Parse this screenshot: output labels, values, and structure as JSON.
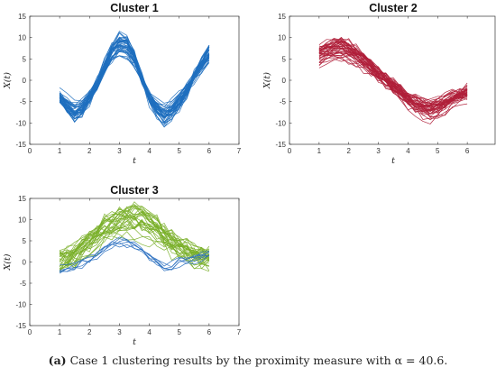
{
  "chart_data": [
    {
      "type": "line",
      "title": "Cluster 1",
      "xlabel": "t",
      "ylabel": "X(t)",
      "xlim": [
        0,
        7
      ],
      "ylim": [
        -15,
        15
      ],
      "xticks": [
        0,
        1,
        2,
        3,
        4,
        5,
        6,
        7
      ],
      "yticks": [
        -15,
        -10,
        -5,
        0,
        5,
        10,
        15
      ],
      "x": [
        1,
        1.25,
        1.5,
        1.75,
        2,
        2.25,
        2.5,
        2.75,
        3,
        3.25,
        3.5,
        3.75,
        4,
        4.25,
        4.5,
        4.75,
        5,
        5.25,
        5.5,
        5.75,
        6
      ],
      "series": [
        {
          "color": "#1f6fbf",
          "count": 40,
          "center": [
            -4,
            -6,
            -7.5,
            -6.5,
            -4,
            -1,
            3,
            6.5,
            8.5,
            8,
            5,
            0.5,
            -4,
            -6.5,
            -8,
            -7,
            -5,
            -2.5,
            1,
            3.5,
            6
          ],
          "spread": 2.2
        }
      ]
    },
    {
      "type": "line",
      "title": "Cluster 2",
      "xlabel": "t",
      "ylabel": "X(t)",
      "xlim": [
        0,
        7
      ],
      "ylim": [
        -15,
        15
      ],
      "xticks": [
        0,
        1,
        2,
        3,
        4,
        5,
        6,
        7
      ],
      "yticks": [
        -15,
        -10,
        -5,
        0,
        5,
        10,
        15
      ],
      "x": [
        1,
        1.25,
        1.5,
        1.75,
        2,
        2.25,
        2.5,
        2.75,
        3,
        3.25,
        3.5,
        3.75,
        4,
        4.25,
        4.5,
        4.75,
        5,
        5.25,
        5.5,
        5.75,
        6
      ],
      "series": [
        {
          "color": "#b0203a",
          "count": 40,
          "center": [
            6,
            7,
            7.5,
            7.5,
            7,
            6,
            4.5,
            3,
            1.5,
            0,
            -1.5,
            -3,
            -4.5,
            -5.5,
            -6.5,
            -7,
            -6.5,
            -5.5,
            -4.5,
            -3.5,
            -3
          ],
          "spread": 2.2
        }
      ]
    },
    {
      "type": "line",
      "title": "Cluster 3",
      "xlabel": "t",
      "ylabel": "X(t)",
      "xlim": [
        0,
        7
      ],
      "ylim": [
        -15,
        15
      ],
      "xticks": [
        0,
        1,
        2,
        3,
        4,
        5,
        6,
        7
      ],
      "yticks": [
        -15,
        -10,
        -5,
        0,
        5,
        10,
        15
      ],
      "x": [
        1,
        1.25,
        1.5,
        1.75,
        2,
        2.25,
        2.5,
        2.75,
        3,
        3.25,
        3.5,
        3.75,
        4,
        4.25,
        4.5,
        4.75,
        5,
        5.25,
        5.5,
        5.75,
        6
      ],
      "series": [
        {
          "color": "#7ab02a",
          "count": 30,
          "center": [
            0,
            0.5,
            1.5,
            3,
            4.5,
            6,
            7.5,
            8.5,
            9.5,
            10,
            10,
            9.5,
            8.5,
            7.5,
            6,
            4.5,
            3.5,
            2.5,
            1.5,
            1,
            0.5
          ],
          "spread": 3.6
        },
        {
          "color": "#2a6fc0",
          "count": 6,
          "center": [
            -2,
            -2,
            -1,
            0,
            1,
            2,
            3,
            4,
            5,
            5,
            4,
            3,
            1.5,
            0,
            -0.5,
            -1,
            0,
            0.5,
            1,
            1.5,
            2
          ],
          "spread": 2.0
        }
      ]
    }
  ],
  "caption": {
    "label": "(a)",
    "text": " Case 1 clustering results by the proximity measure with α = 40.6."
  }
}
